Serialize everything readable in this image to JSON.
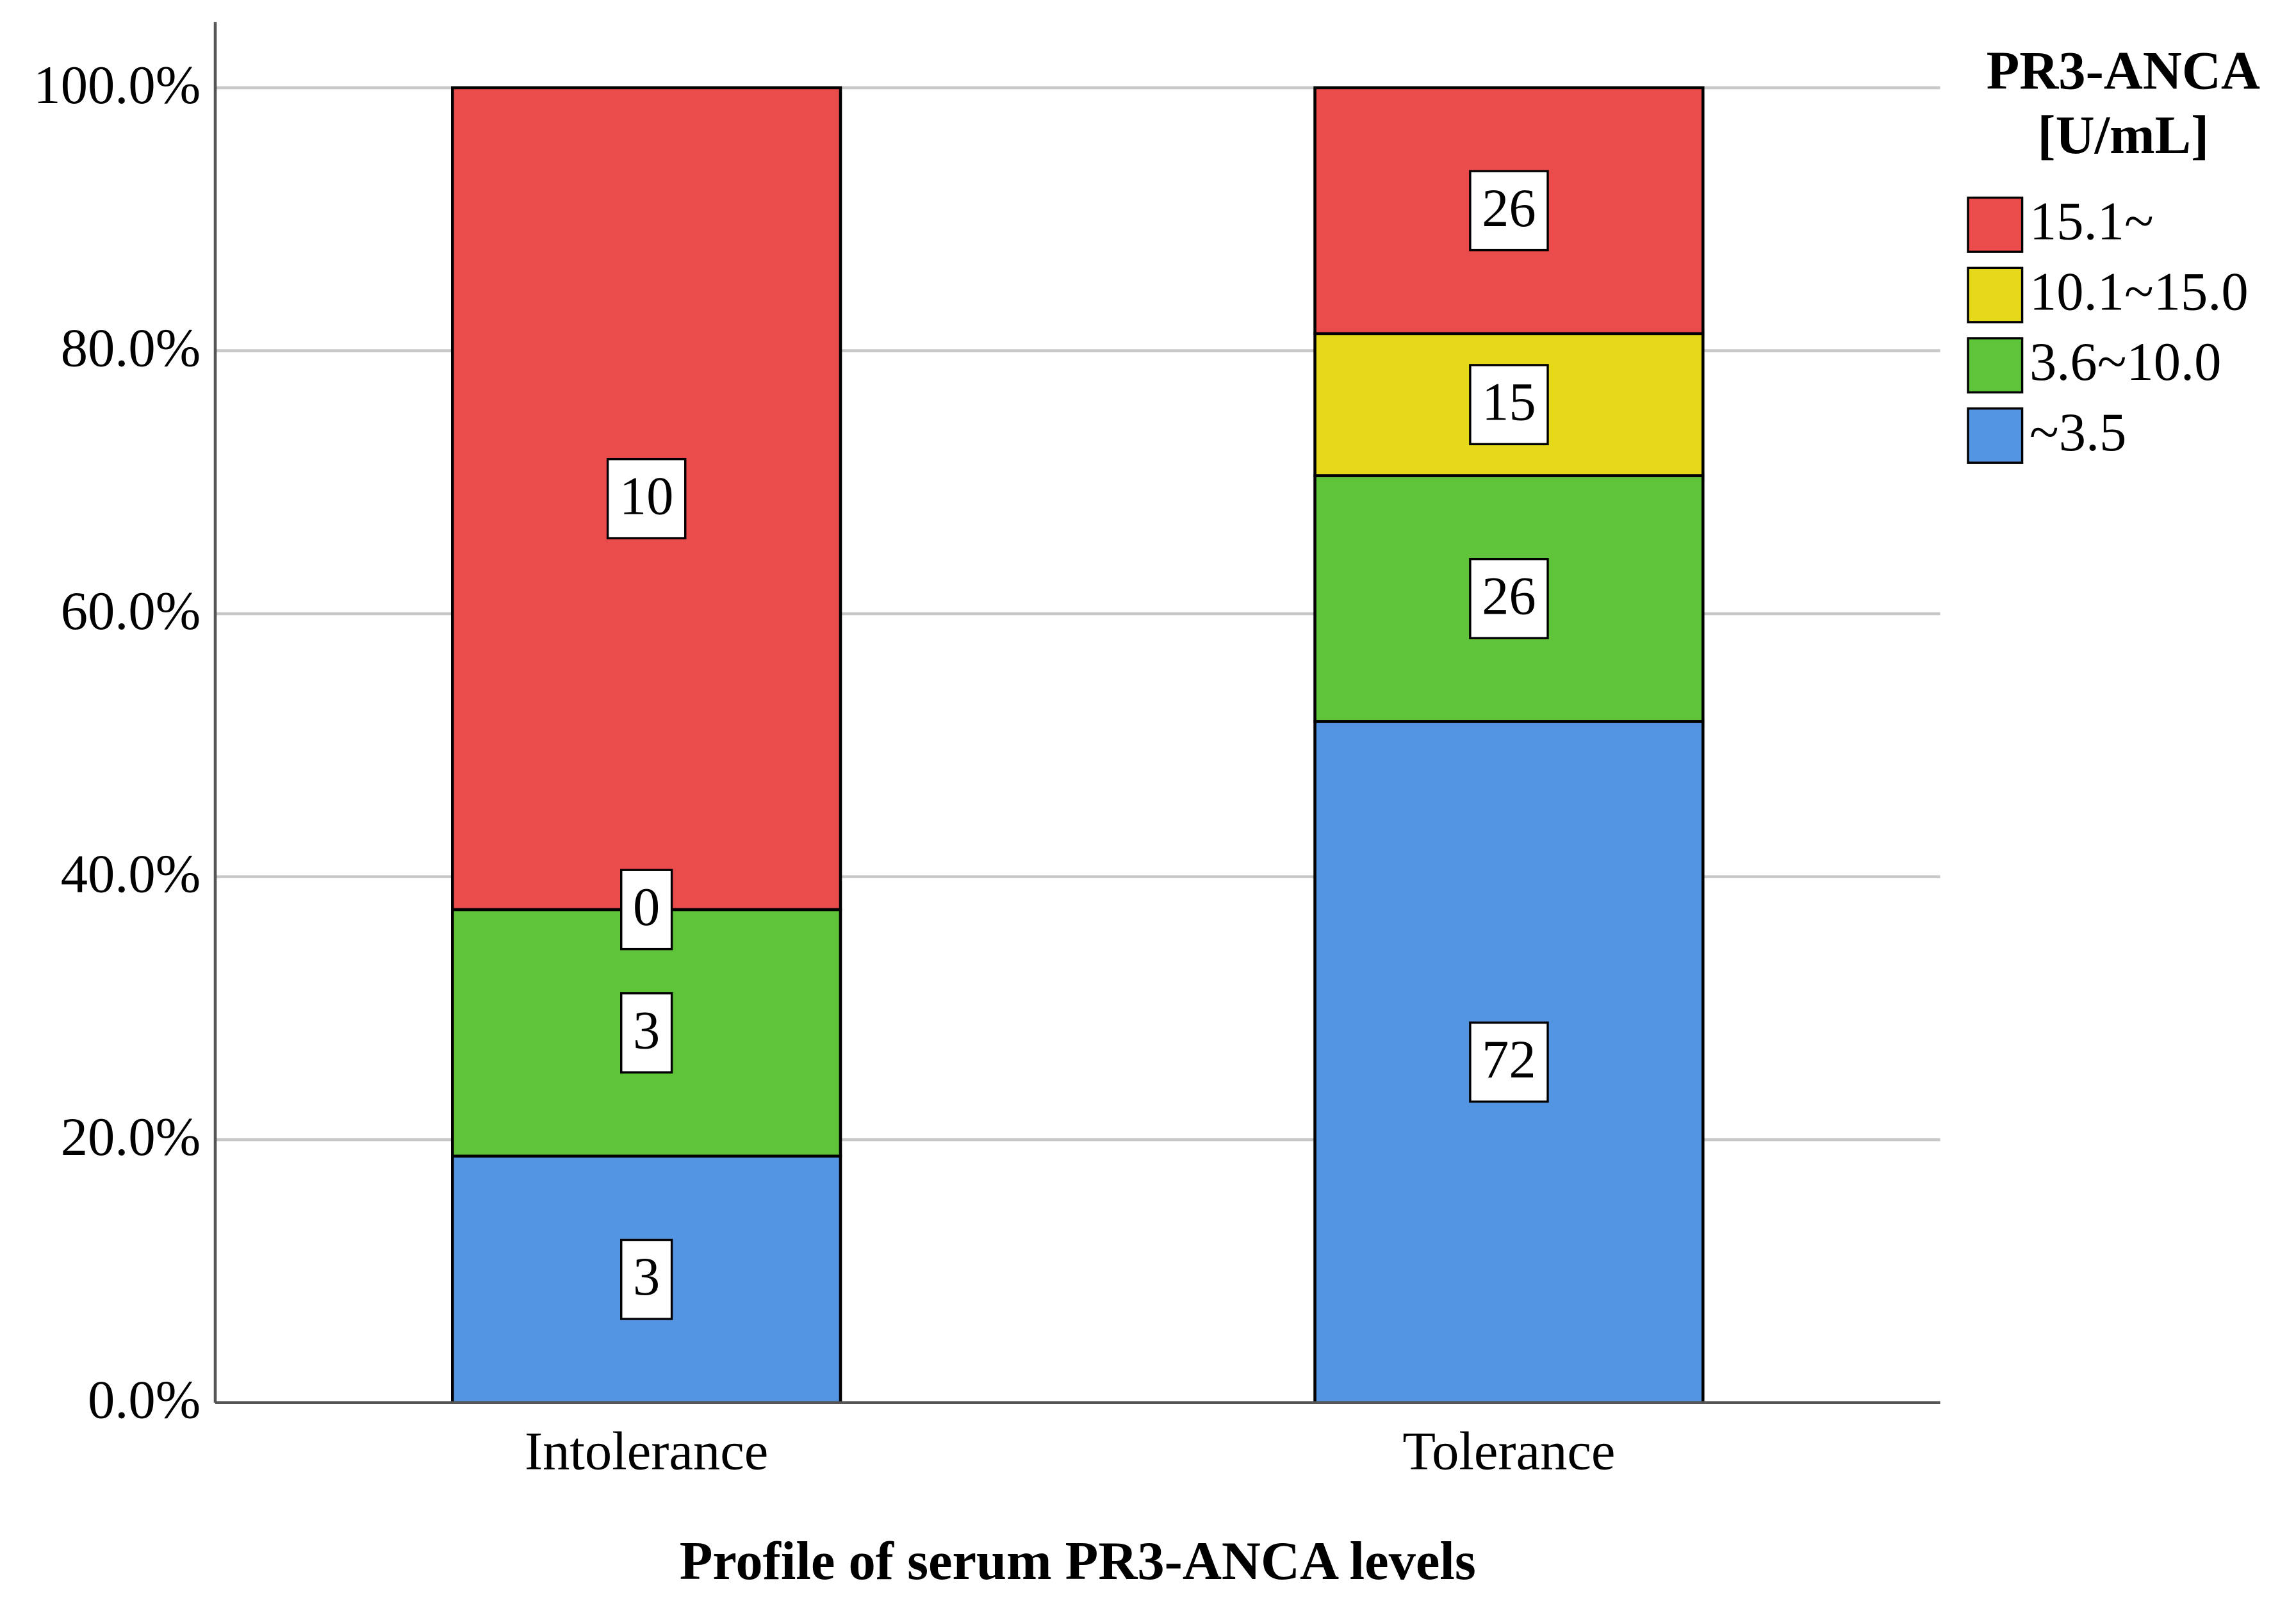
{
  "chart_data": {
    "type": "stacked-bar",
    "x_label": "Profile of serum PR3-ANCA levels",
    "legend_title": [
      "PR3-ANCA",
      "[U/mL]"
    ],
    "categories": [
      "Intolerance",
      "Tolerance"
    ],
    "series": [
      {
        "name": "~3.5",
        "color": "#5495e3",
        "values": [
          18.75,
          51.8
        ],
        "counts": [
          3,
          72
        ]
      },
      {
        "name": "3.6~10.0",
        "color": "#5fc43a",
        "values": [
          18.75,
          18.7
        ],
        "counts": [
          3,
          26
        ]
      },
      {
        "name": "10.1~15.0",
        "color": "#e6d81a",
        "values": [
          0,
          10.8
        ],
        "counts": [
          0,
          15
        ]
      },
      {
        "name": "15.1~",
        "color": "#ea4b4b",
        "values": [
          62.5,
          18.7
        ],
        "counts": [
          10,
          26
        ]
      }
    ],
    "ylim": [
      0,
      105
    ],
    "yticks": [
      {
        "value": 0,
        "label": "0.0%"
      },
      {
        "value": 20,
        "label": "20.0%"
      },
      {
        "value": 40,
        "label": "40.0%"
      },
      {
        "value": 60,
        "label": "60.0%"
      },
      {
        "value": 80,
        "label": "80.0%"
      },
      {
        "value": 100,
        "label": "100.0%"
      }
    ],
    "grid": true,
    "legend_position": "right"
  }
}
